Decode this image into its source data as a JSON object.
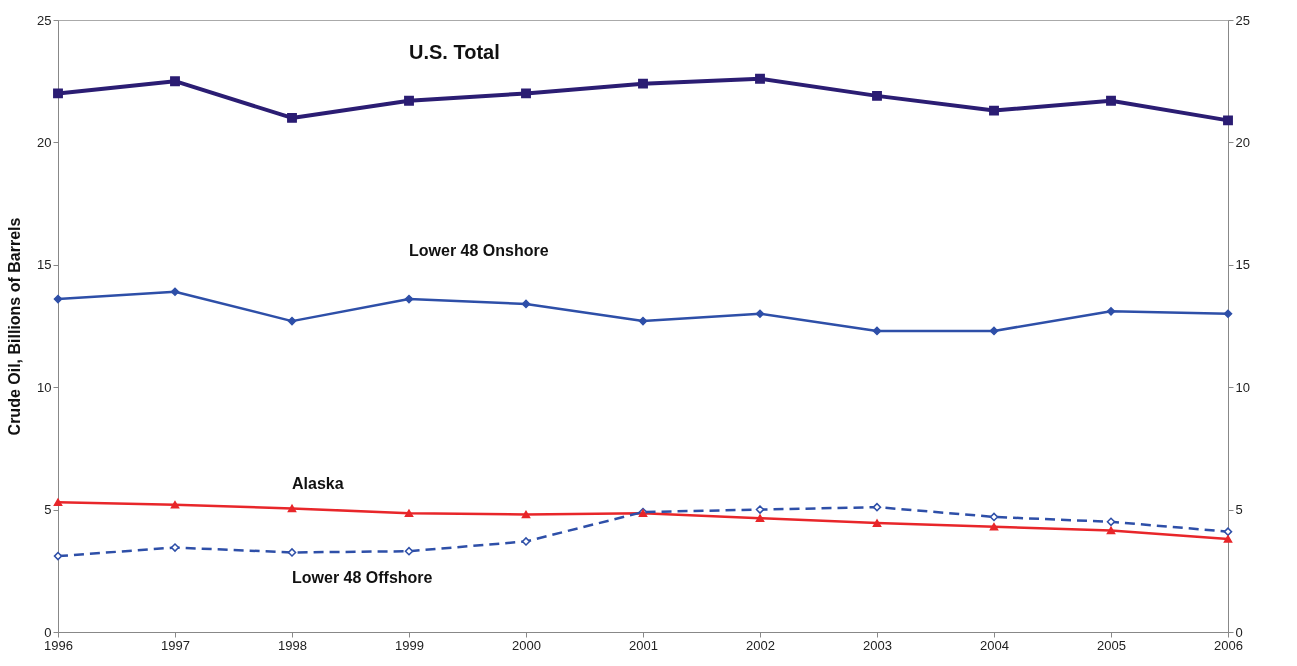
{
  "chart_data": {
    "type": "line",
    "ylabel": "Crude Oil, Billions of Barrels",
    "x": [
      1996,
      1997,
      1998,
      1999,
      2000,
      2001,
      2002,
      2003,
      2004,
      2005,
      2006
    ],
    "xlim": [
      1996,
      2006
    ],
    "xticks": [
      1996,
      1997,
      1998,
      1999,
      2000,
      2001,
      2002,
      2003,
      2004,
      2005,
      2006
    ],
    "ylim": [
      0,
      25
    ],
    "yticks": [
      0,
      5,
      10,
      15,
      20,
      25
    ],
    "y2lim": [
      0,
      25
    ],
    "y2ticks": [
      0,
      5,
      10,
      15,
      20,
      25
    ],
    "grid": false,
    "legend": false,
    "series": [
      {
        "name": "U.S. Total",
        "color": "#2b1d73",
        "marker": "square",
        "line_style": "solid",
        "values": [
          22.0,
          22.5,
          21.0,
          21.7,
          22.0,
          22.4,
          22.6,
          21.9,
          21.3,
          21.7,
          20.9
        ]
      },
      {
        "name": "Lower 48 Onshore",
        "color": "#2e4fa8",
        "marker": "diamond",
        "line_style": "solid",
        "values": [
          13.6,
          13.9,
          12.7,
          13.6,
          13.4,
          12.7,
          13.0,
          12.3,
          12.3,
          13.1,
          13.0
        ]
      },
      {
        "name": "Alaska",
        "color": "#e8262a",
        "marker": "triangle",
        "line_style": "solid",
        "values": [
          5.3,
          5.2,
          5.05,
          4.85,
          4.8,
          4.85,
          4.65,
          4.45,
          4.3,
          4.15,
          3.8
        ]
      },
      {
        "name": "Lower 48 Offshore",
        "color": "#2e4fa8",
        "marker": "diamond",
        "line_style": "dashed",
        "values": [
          3.1,
          3.45,
          3.25,
          3.3,
          3.7,
          4.9,
          5.0,
          5.1,
          4.7,
          4.5,
          4.1
        ]
      }
    ]
  }
}
